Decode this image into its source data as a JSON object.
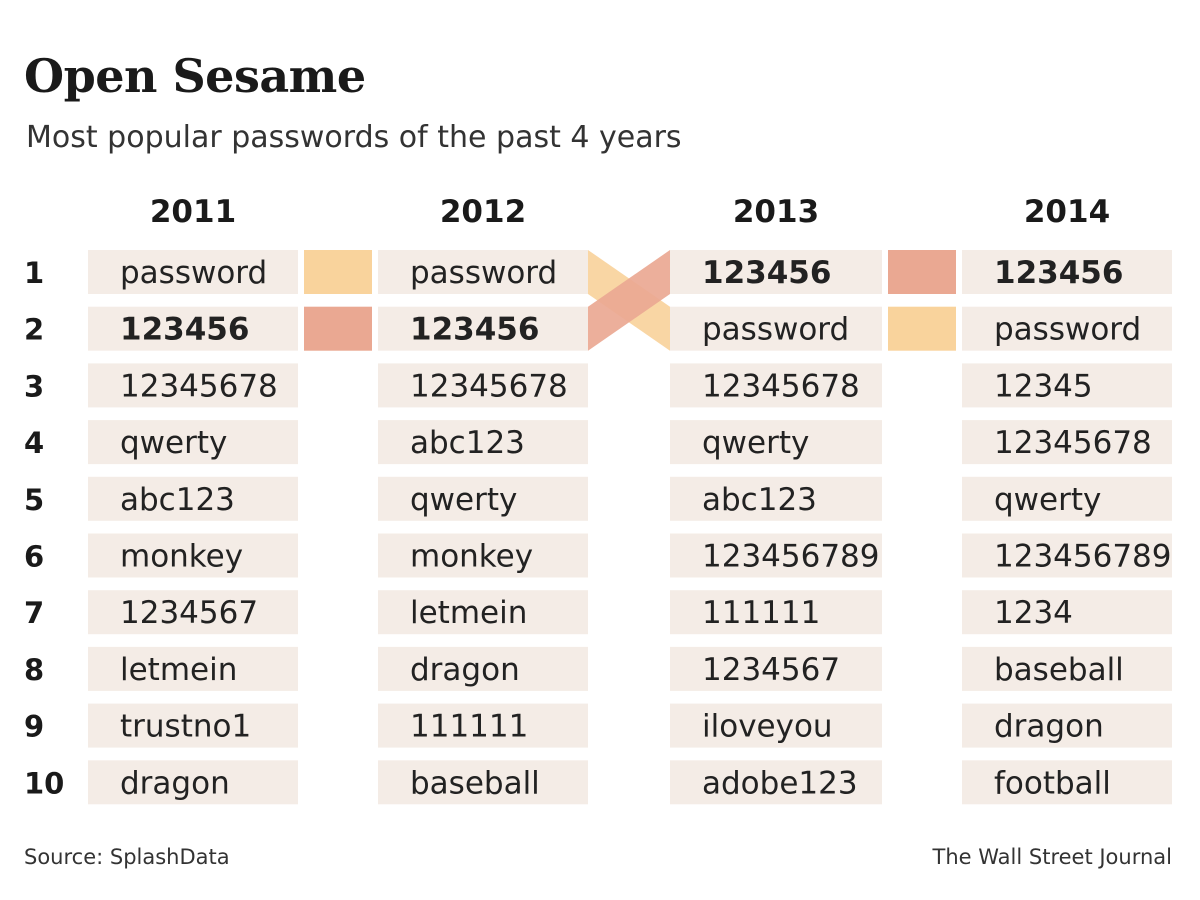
{
  "title": "Open Sesame",
  "subtitle": "Most popular passwords of the past 4 years",
  "source": "Source: SplashData",
  "credit": "The Wall Street Journal",
  "colors": {
    "cell_background": "#f4ece6",
    "password_band": "#f9d39c",
    "number_band": "#eaa892"
  },
  "chart_data": {
    "type": "table",
    "ranks": [
      "1",
      "2",
      "3",
      "4",
      "5",
      "6",
      "7",
      "8",
      "9",
      "10"
    ],
    "years": [
      {
        "year": "2011",
        "passwords": [
          "password",
          "123456",
          "12345678",
          "qwerty",
          "abc123",
          "monkey",
          "1234567",
          "letmein",
          "trustno1",
          "dragon"
        ]
      },
      {
        "year": "2012",
        "passwords": [
          "password",
          "123456",
          "12345678",
          "abc123",
          "qwerty",
          "monkey",
          "letmein",
          "dragon",
          "111111",
          "baseball"
        ]
      },
      {
        "year": "2013",
        "passwords": [
          "123456",
          "password",
          "12345678",
          "qwerty",
          "abc123",
          "123456789",
          "111111",
          "1234567",
          "iloveyou",
          "adobe123"
        ]
      },
      {
        "year": "2014",
        "passwords": [
          "123456",
          "password",
          "12345",
          "12345678",
          "qwerty",
          "123456789",
          "1234",
          "baseball",
          "dragon",
          "football"
        ]
      }
    ],
    "highlighted": [
      "password",
      "123456"
    ]
  }
}
